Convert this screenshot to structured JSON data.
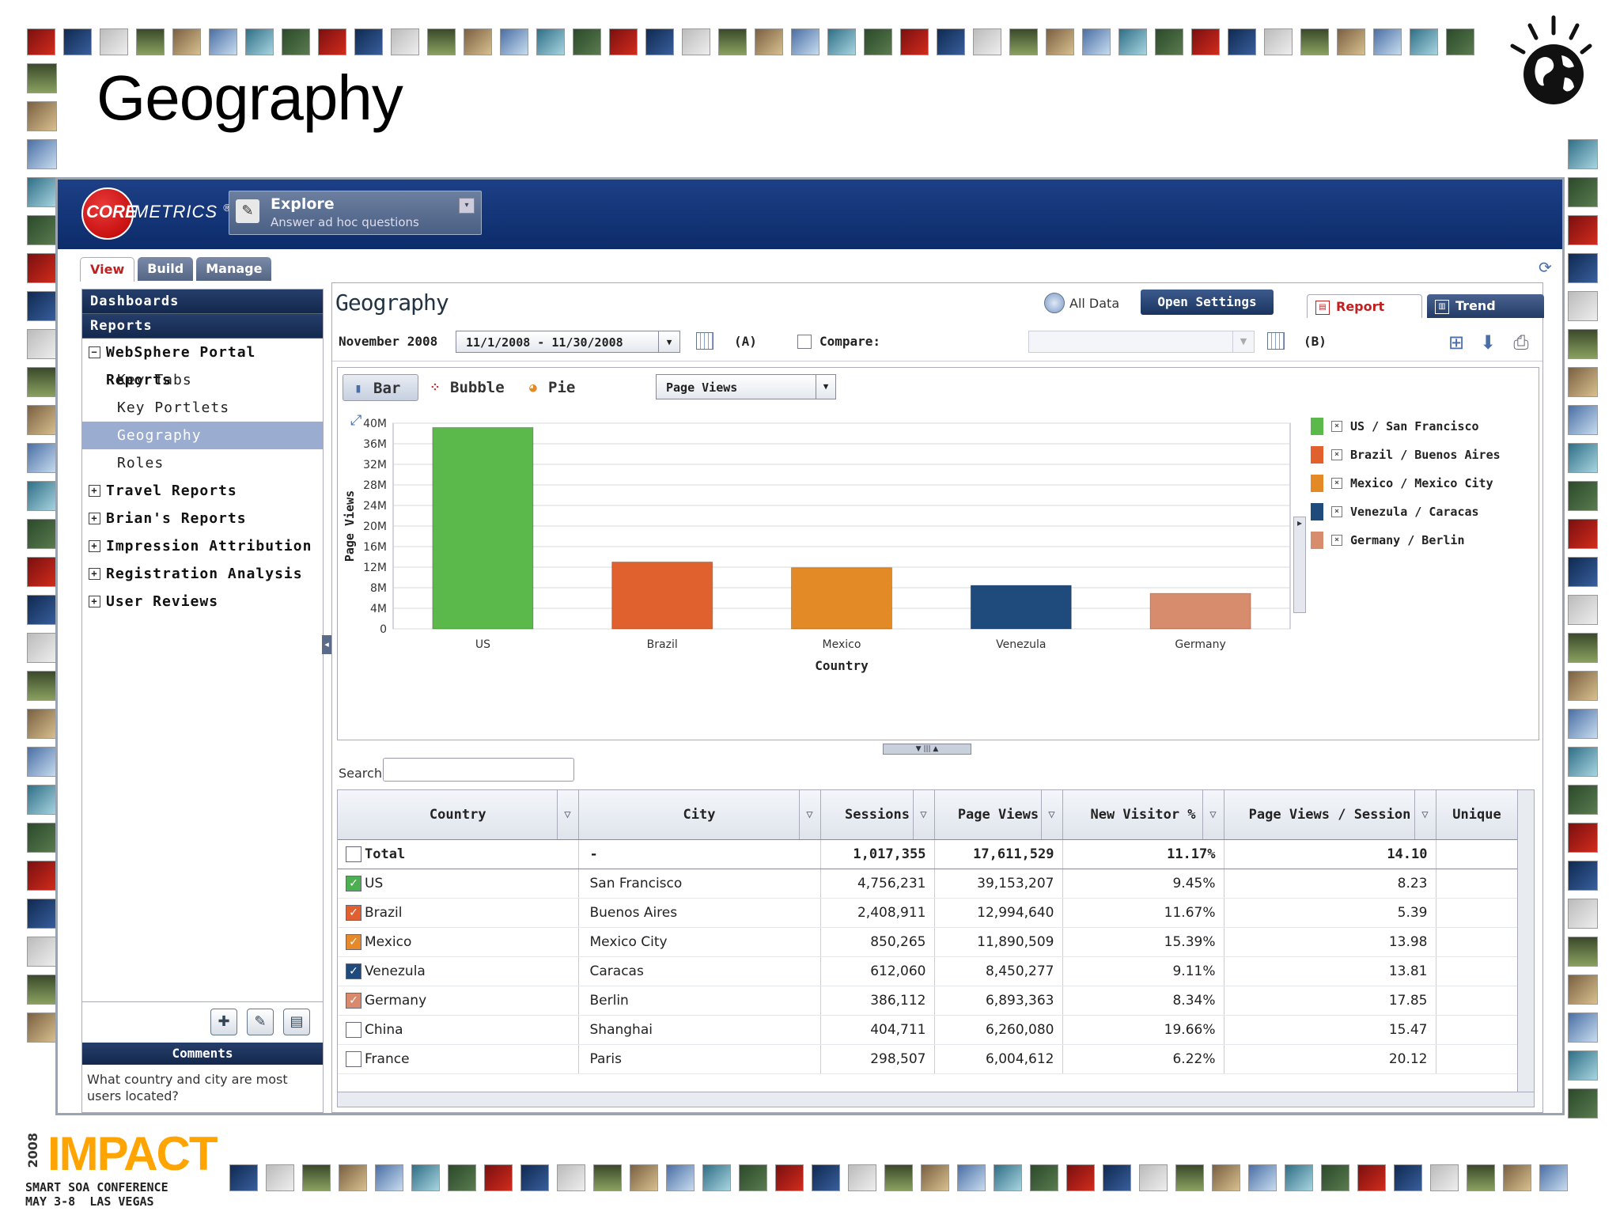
{
  "slide": {
    "title": "Geography",
    "conference": {
      "year": "2008",
      "name": "IMPACT",
      "line1": "SMART SOA CONFERENCE",
      "line2": "MAY 3-8  LAS VEGAS"
    }
  },
  "app": {
    "logo": {
      "core": "CORE",
      "metrics": "METRICS",
      "reg": "®"
    },
    "module": {
      "title": "Explore",
      "subtitle": "Answer ad hoc questions"
    },
    "tabs": [
      "View",
      "Build",
      "Manage"
    ],
    "sidebar": {
      "dashboards": "Dashboards",
      "reports": "Reports",
      "groups": [
        {
          "label": "WebSphere Portal Reports",
          "expanded": true,
          "children": [
            "Key Tabs",
            "Key Portlets",
            "Geography",
            "Roles"
          ],
          "selected": "Geography"
        },
        {
          "label": "Travel Reports"
        },
        {
          "label": "Brian's Reports"
        },
        {
          "label": "Impression Attribution"
        },
        {
          "label": "Registration Analysis"
        },
        {
          "label": "User Reviews"
        }
      ],
      "comments_title": "Comments",
      "comments_text": "What country and city are most users located?"
    },
    "report": {
      "title": "Geography",
      "all_data": "All Data",
      "open_settings": "Open Settings",
      "view_tabs": {
        "report": "Report",
        "trend": "Trend"
      },
      "period_label": "November 2008",
      "date_range": "11/1/2008 - 11/30/2008",
      "marker_a": "(A)",
      "compare_label": "Compare:",
      "marker_b": "(B)",
      "chart_types": [
        "Bar",
        "Bubble",
        "Pie"
      ],
      "metric": "Page Views",
      "search_label": "Search",
      "columns": [
        "Country",
        "City",
        "Sessions",
        "Page Views",
        "New Visitor %",
        "Page Views / Session",
        "Unique"
      ],
      "rows": [
        {
          "country": "Total",
          "city": "-",
          "sessions": "1,017,355",
          "page_views": "17,611,529",
          "new_visitor": "11.17%",
          "pvs": "14.10",
          "check": "none",
          "total": true
        },
        {
          "country": "US",
          "city": "San Francisco",
          "sessions": "4,756,231",
          "page_views": "39,153,207",
          "new_visitor": "9.45%",
          "pvs": "8.23",
          "check": "#4caf50"
        },
        {
          "country": "Brazil",
          "city": "Buenos Aires",
          "sessions": "2,408,911",
          "page_views": "12,994,640",
          "new_visitor": "11.67%",
          "pvs": "5.39",
          "check": "#e06030"
        },
        {
          "country": "Mexico",
          "city": "Mexico City",
          "sessions": "850,265",
          "page_views": "11,890,509",
          "new_visitor": "15.39%",
          "pvs": "13.98",
          "check": "#e5892a"
        },
        {
          "country": "Venezula",
          "city": "Caracas",
          "sessions": "612,060",
          "page_views": "8,450,277",
          "new_visitor": "9.11%",
          "pvs": "13.81",
          "check": "#1f4a7c"
        },
        {
          "country": "Germany",
          "city": "Berlin",
          "sessions": "386,112",
          "page_views": "6,893,363",
          "new_visitor": "8.34%",
          "pvs": "17.85",
          "check": "#d98a6c"
        },
        {
          "country": "China",
          "city": "Shanghai",
          "sessions": "404,711",
          "page_views": "6,260,080",
          "new_visitor": "19.66%",
          "pvs": "15.47",
          "check": "none"
        },
        {
          "country": "France",
          "city": "Paris",
          "sessions": "298,507",
          "page_views": "6,004,612",
          "new_visitor": "6.22%",
          "pvs": "20.12",
          "check": "none"
        }
      ]
    }
  },
  "chart_data": {
    "type": "bar",
    "categories": [
      "US",
      "Brazil",
      "Mexico",
      "Venezula",
      "Germany"
    ],
    "values": [
      39153207,
      12994640,
      11890509,
      8450277,
      6893363
    ],
    "colors": [
      "#5bb84a",
      "#e0602e",
      "#e38a26",
      "#1e4a7c",
      "#d78c6e"
    ],
    "xlabel": "Country",
    "ylabel": "Page Views",
    "ylim": [
      0,
      40000000
    ],
    "ytick_labels": [
      "0",
      "4M",
      "8M",
      "12M",
      "16M",
      "20M",
      "24M",
      "28M",
      "32M",
      "36M",
      "40M"
    ],
    "legend": [
      "US / San Francisco",
      "Brazil / Buenos Aires",
      "Mexico / Mexico City",
      "Venezula / Caracas",
      "Germany / Berlin"
    ],
    "legend_position": "right",
    "grid": true
  }
}
